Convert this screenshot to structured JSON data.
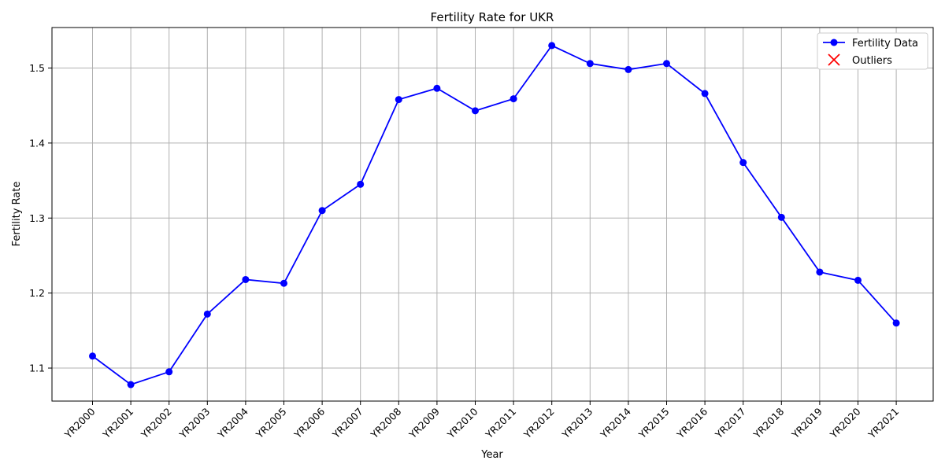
{
  "chart_data": {
    "type": "line",
    "title": "Fertility Rate for UKR",
    "xlabel": "Year",
    "ylabel": "Fertility Rate",
    "categories": [
      "YR2000",
      "YR2001",
      "YR2002",
      "YR2003",
      "YR2004",
      "YR2005",
      "YR2006",
      "YR2007",
      "YR2008",
      "YR2009",
      "YR2010",
      "YR2011",
      "YR2012",
      "YR2013",
      "YR2014",
      "YR2015",
      "YR2016",
      "YR2017",
      "YR2018",
      "YR2019",
      "YR2020",
      "YR2021"
    ],
    "series": [
      {
        "name": "Fertility Data",
        "color": "#0000ff",
        "values": [
          1.116,
          1.078,
          1.095,
          1.172,
          1.218,
          1.213,
          1.31,
          1.345,
          1.458,
          1.473,
          1.443,
          1.459,
          1.53,
          1.506,
          1.498,
          1.506,
          1.466,
          1.374,
          1.301,
          1.228,
          1.217,
          1.16
        ]
      }
    ],
    "outliers": {
      "name": "Outliers",
      "color": "#ff0000",
      "points": []
    },
    "ylim": [
      1.056,
      1.554
    ],
    "yticks": [
      1.1,
      1.2,
      1.3,
      1.4,
      1.5
    ],
    "ytick_labels": [
      "1.1",
      "1.2",
      "1.3",
      "1.4",
      "1.5"
    ],
    "grid": true,
    "legend": {
      "position": "top-right",
      "entries": [
        "Fertility Data",
        "Outliers"
      ]
    }
  }
}
